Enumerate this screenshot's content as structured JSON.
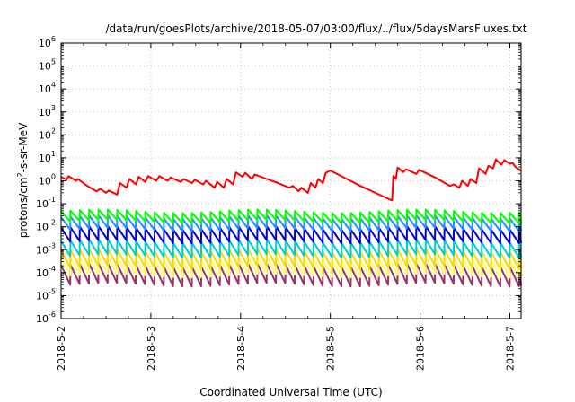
{
  "chart_data": {
    "type": "line",
    "title": "/data/run/goesPlots/archive/2018-05-07/03:00/flux/../flux/5daysMarsFluxes.txt",
    "xlabel": "Coordinated Universal Time (UTC)",
    "ylabel_parts": [
      "protons/cm",
      "2",
      "-s-sr-MeV"
    ],
    "yscale": "log",
    "ylim": [
      1e-06,
      1000000.0
    ],
    "y_tick_labels": [
      {
        "base": "10",
        "exp": "-6",
        "value": 1e-06
      },
      {
        "base": "10",
        "exp": "-5",
        "value": 1e-05
      },
      {
        "base": "10",
        "exp": "-4",
        "value": 0.0001
      },
      {
        "base": "10",
        "exp": "-3",
        "value": 0.001
      },
      {
        "base": "10",
        "exp": "-2",
        "value": 0.01
      },
      {
        "base": "10",
        "exp": "-1",
        "value": 0.1
      },
      {
        "base": "10",
        "exp": "0",
        "value": 1
      },
      {
        "base": "10",
        "exp": "1",
        "value": 10
      },
      {
        "base": "10",
        "exp": "2",
        "value": 100
      },
      {
        "base": "10",
        "exp": "3",
        "value": 1000
      },
      {
        "base": "10",
        "exp": "4",
        "value": 10000
      },
      {
        "base": "10",
        "exp": "5",
        "value": 100000
      },
      {
        "base": "10",
        "exp": "6",
        "value": 1000000
      }
    ],
    "x_range_days": [
      "2018-05-02",
      "2018-05-07 03:00"
    ],
    "x_tick_labels": [
      "2018-5-2",
      "2018-5-3",
      "2018-5-4",
      "2018-5-5",
      "2018-5-6",
      "2018-5-7"
    ],
    "grid": true,
    "series": [
      {
        "color": "#ff0000",
        "values_desc": "highest channel",
        "points": [
          [
            "2018-05-02 00:00",
            1.5
          ],
          [
            "2018-05-02 01:30",
            1.1
          ],
          [
            "2018-05-02 02:00",
            1.6
          ],
          [
            "2018-05-02 04:00",
            1.0
          ],
          [
            "2018-05-02 04:30",
            1.2
          ],
          [
            "2018-05-02 07:00",
            0.6
          ],
          [
            "2018-05-02 09:30",
            0.35
          ],
          [
            "2018-05-02 10:30",
            0.45
          ],
          [
            "2018-05-02 12:00",
            0.3
          ],
          [
            "2018-05-02 12:45",
            0.38
          ],
          [
            "2018-05-02 15:00",
            0.25
          ],
          [
            "2018-05-02 15:45",
            0.8
          ],
          [
            "2018-05-02 17:30",
            0.5
          ],
          [
            "2018-05-02 18:15",
            1.2
          ],
          [
            "2018-05-02 20:00",
            0.7
          ],
          [
            "2018-05-02 20:45",
            1.5
          ],
          [
            "2018-05-02 22:30",
            0.9
          ],
          [
            "2018-05-02 23:15",
            1.6
          ],
          [
            "2018-05-03 01:30",
            1.0
          ],
          [
            "2018-05-03 02:15",
            1.6
          ],
          [
            "2018-05-03 04:30",
            1.0
          ],
          [
            "2018-05-03 05:15",
            1.4
          ],
          [
            "2018-05-03 08:00",
            0.9
          ],
          [
            "2018-05-03 08:45",
            1.2
          ],
          [
            "2018-05-03 11:00",
            0.8
          ],
          [
            "2018-05-03 11:45",
            1.1
          ],
          [
            "2018-05-03 14:00",
            0.7
          ],
          [
            "2018-05-03 14:45",
            1.0
          ],
          [
            "2018-05-03 17:00",
            0.5
          ],
          [
            "2018-05-03 17:45",
            0.9
          ],
          [
            "2018-05-03 19:30",
            0.5
          ],
          [
            "2018-05-03 20:15",
            1.2
          ],
          [
            "2018-05-03 22:00",
            0.7
          ],
          [
            "2018-05-03 22:45",
            2.3
          ],
          [
            "2018-05-04 00:30",
            1.5
          ],
          [
            "2018-05-04 01:15",
            2.2
          ],
          [
            "2018-05-04 03:00",
            1.2
          ],
          [
            "2018-05-04 03:45",
            1.9
          ],
          [
            "2018-05-04 07:00",
            1.2
          ],
          [
            "2018-05-04 10:00",
            0.8
          ],
          [
            "2018-05-04 13:00",
            0.5
          ],
          [
            "2018-05-04 14:00",
            0.6
          ],
          [
            "2018-05-04 15:30",
            0.35
          ],
          [
            "2018-05-04 16:15",
            0.5
          ],
          [
            "2018-05-04 18:00",
            0.3
          ],
          [
            "2018-05-04 18:45",
            0.8
          ],
          [
            "2018-05-04 20:00",
            0.5
          ],
          [
            "2018-05-04 20:45",
            1.2
          ],
          [
            "2018-05-04 22:00",
            0.8
          ],
          [
            "2018-05-04 22:45",
            2.2
          ],
          [
            "2018-05-05 00:00",
            2.8
          ],
          [
            "2018-05-05 04:00",
            1.3
          ],
          [
            "2018-05-05 08:00",
            0.6
          ],
          [
            "2018-05-05 12:00",
            0.3
          ],
          [
            "2018-05-05 16:00",
            0.15
          ],
          [
            "2018-05-05 16:30",
            0.14
          ],
          [
            "2018-05-05 16:50",
            1.6
          ],
          [
            "2018-05-05 17:30",
            1.2
          ],
          [
            "2018-05-05 18:00",
            3.8
          ],
          [
            "2018-05-05 19:30",
            2.4
          ],
          [
            "2018-05-05 20:15",
            3.2
          ],
          [
            "2018-05-05 23:00",
            2.0
          ],
          [
            "2018-05-05 23:45",
            3.0
          ],
          [
            "2018-05-06 04:00",
            1.4
          ],
          [
            "2018-05-06 08:00",
            0.6
          ],
          [
            "2018-05-06 09:00",
            0.7
          ],
          [
            "2018-05-06 10:30",
            0.5
          ],
          [
            "2018-05-06 11:15",
            1.0
          ],
          [
            "2018-05-06 12:45",
            0.6
          ],
          [
            "2018-05-06 13:30",
            1.2
          ],
          [
            "2018-05-06 15:00",
            0.8
          ],
          [
            "2018-05-06 15:45",
            3.5
          ],
          [
            "2018-05-06 17:30",
            2.0
          ],
          [
            "2018-05-06 18:15",
            4.5
          ],
          [
            "2018-05-06 19:30",
            3.5
          ],
          [
            "2018-05-06 20:15",
            8.5
          ],
          [
            "2018-05-06 21:45",
            5.0
          ],
          [
            "2018-05-06 22:30",
            8.0
          ],
          [
            "2018-05-07 00:00",
            5.5
          ],
          [
            "2018-05-07 00:45",
            6.0
          ],
          [
            "2018-05-07 01:30",
            4.0
          ],
          [
            "2018-05-07 03:00",
            2.7
          ]
        ]
      },
      {
        "color": "#00ff00",
        "baseline_log": -1.55,
        "amplitude_log": 0.45
      },
      {
        "color": "#1e90ff",
        "baseline_log": -1.85,
        "amplitude_log": 0.55
      },
      {
        "color": "#0000cd",
        "baseline_log": -2.35,
        "amplitude_log": 0.6
      },
      {
        "color": "#00cccc",
        "baseline_log": -2.95,
        "amplitude_log": 0.65
      },
      {
        "color": "#ffd700",
        "baseline_log": -3.4,
        "amplitude_log": 0.75
      },
      {
        "color": "#ffff66",
        "baseline_log": -3.75,
        "amplitude_log": 0.75
      },
      {
        "color": "#993366",
        "baseline_log": -4.1,
        "amplitude_log": 0.85
      }
    ]
  }
}
